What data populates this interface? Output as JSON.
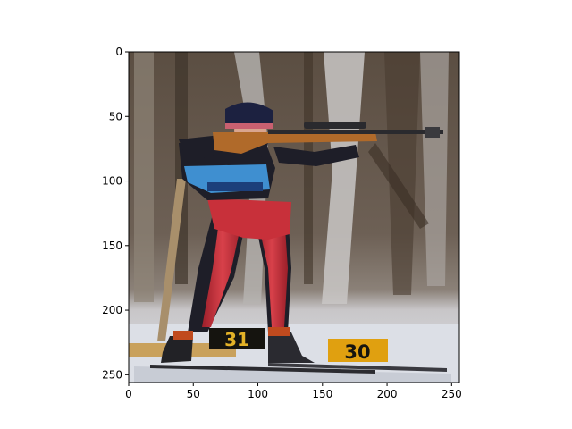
{
  "figure": {
    "image_subject": "biathlete aiming rifle in standing position on snowy range",
    "axes": {
      "x_ticks": [
        "0",
        "50",
        "100",
        "150",
        "200",
        "250"
      ],
      "y_ticks": [
        "0",
        "50",
        "100",
        "150",
        "200",
        "250"
      ],
      "x_range": [
        0,
        256
      ],
      "y_range": [
        256,
        0
      ]
    },
    "target_plates": [
      {
        "number": "31"
      },
      {
        "number": "30"
      }
    ],
    "colors": {
      "suit_red": "#c8303a",
      "suit_dark": "#1e1e28",
      "vest_blue": "#3f8fd0",
      "rifle_wood": "#b06a2a",
      "plate_yellow": "#e0a010",
      "plate_black": "#15140f",
      "snow": "#dcdfe6"
    }
  }
}
